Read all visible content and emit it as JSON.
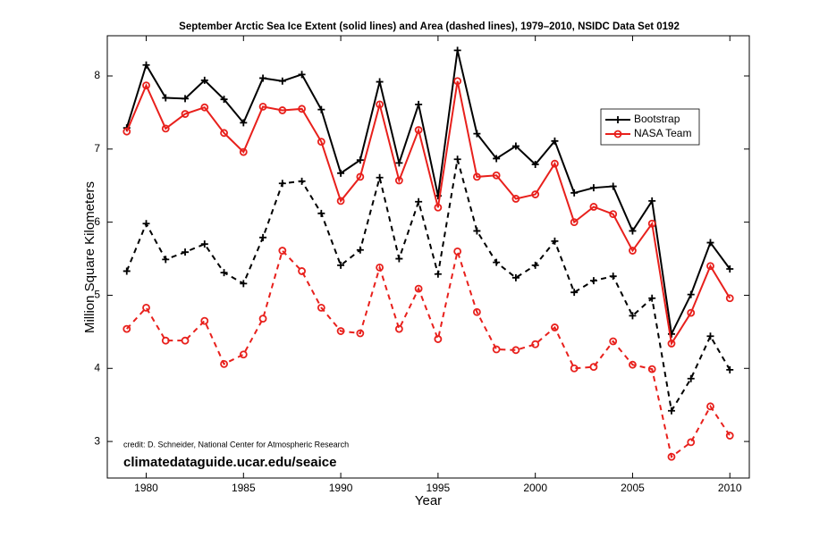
{
  "chart_data": {
    "type": "line",
    "title": "September Arctic Sea Ice Extent (solid lines) and Area (dashed lines), 1979–2010, NSIDC Data Set 0192",
    "x_label": "Year",
    "y_label": "Million Square Kilometers",
    "x": [
      1979,
      1980,
      1981,
      1982,
      1983,
      1984,
      1985,
      1986,
      1987,
      1988,
      1989,
      1990,
      1991,
      1992,
      1993,
      1994,
      1995,
      1996,
      1997,
      1998,
      1999,
      2000,
      2001,
      2002,
      2003,
      2004,
      2005,
      2006,
      2007,
      2008,
      2009,
      2010
    ],
    "series": [
      {
        "name": "Bootstrap",
        "color": "#000000",
        "marker": "plus",
        "extent": [
          7.29,
          8.15,
          7.7,
          7.69,
          7.94,
          7.68,
          7.36,
          7.97,
          7.93,
          8.02,
          7.54,
          6.67,
          6.85,
          7.92,
          6.81,
          7.61,
          6.36,
          8.35,
          7.21,
          6.87,
          7.04,
          6.79,
          7.11,
          6.4,
          6.47,
          6.49,
          5.88,
          6.29,
          4.47,
          5.01,
          5.72,
          5.36
        ],
        "area": [
          5.33,
          5.98,
          5.49,
          5.59,
          5.7,
          5.31,
          5.16,
          5.79,
          6.53,
          6.56,
          6.12,
          5.41,
          5.62,
          6.61,
          5.5,
          6.28,
          5.29,
          6.86,
          5.88,
          5.45,
          5.24,
          5.41,
          5.74,
          5.04,
          5.2,
          5.26,
          4.72,
          4.96,
          3.42,
          3.86,
          4.44,
          3.98
        ]
      },
      {
        "name": "NASA Team",
        "color": "#e8201c",
        "marker": "circle",
        "extent": [
          7.24,
          7.87,
          7.28,
          7.48,
          7.57,
          7.22,
          6.96,
          7.58,
          7.53,
          7.55,
          7.1,
          6.29,
          6.62,
          7.61,
          6.57,
          7.26,
          6.2,
          7.93,
          6.62,
          6.64,
          6.32,
          6.38,
          6.8,
          6.0,
          6.21,
          6.11,
          5.61,
          5.98,
          4.34,
          4.76,
          5.4,
          4.96
        ],
        "area": [
          4.54,
          4.83,
          4.38,
          4.38,
          4.65,
          4.06,
          4.19,
          4.68,
          5.61,
          5.33,
          4.83,
          4.51,
          4.48,
          5.38,
          4.54,
          5.09,
          4.4,
          5.6,
          4.77,
          4.26,
          4.25,
          4.33,
          4.56,
          4.0,
          4.02,
          4.37,
          4.05,
          3.99,
          2.79,
          2.99,
          3.48,
          3.08
        ]
      }
    ],
    "xlim": [
      1978,
      2011
    ],
    "ylim": [
      2.5,
      8.55
    ],
    "xticks": [
      1980,
      1985,
      1990,
      1995,
      2000,
      2005,
      2010
    ],
    "yticks": [
      3,
      4,
      5,
      6,
      7,
      8
    ],
    "legend": "upper right",
    "annotations": [
      "credit: D. Schneider, National Center for Atmospheric Research",
      "climatedataguide.ucar.edu/seaice"
    ]
  }
}
